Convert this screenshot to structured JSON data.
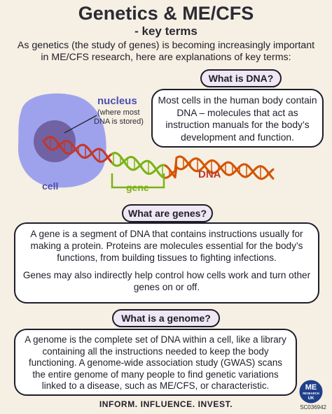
{
  "header": {
    "title": "Genetics & ME/CFS",
    "subtitle": "- key terms",
    "intro": "As genetics (the study of genes) is becoming increasingly important in ME/CFS research, here are explanations of key terms:"
  },
  "dna_section": {
    "question": "What is DNA?",
    "answer": "Most cells in the human body contain DNA – molecules that act as instruction manuals for the body’s development and function."
  },
  "diagram": {
    "nucleus_label": "nucleus",
    "nucleus_note_line1": "(where most",
    "nucleus_note_line2": "DNA is stored)",
    "cell_label": "cell",
    "gene_label": "gene",
    "dna_label": "DNA",
    "colors": {
      "cell": "#8e94ef",
      "nucleus": "#6b5b9a",
      "dna_red": "#c0392b",
      "dna_orange": "#d35400",
      "gene_green": "#7ab317",
      "label_blue": "#4a4fb0"
    }
  },
  "genes_section": {
    "question": "What are genes?",
    "answer_p1": "A gene is a segment of DNA that contains instructions usually for making a protein. Proteins are molecules essential for the body’s functions, from building tissues to fighting infections.",
    "answer_p2": "Genes may also indirectly help control how cells work and turn other genes on or off."
  },
  "genome_section": {
    "question": "What is a genome?",
    "answer": "A genome is the complete set of DNA within a cell, like a library containing all the instructions needed to keep the body functioning. A genome-wide association study (GWAS) scans the entire genome of many people to find genetic variations linked to a disease, such as ME/CFS, or characteristic."
  },
  "footer": {
    "tagline": "INFORM. INFLUENCE. INVEST.",
    "logo_main": "ME",
    "logo_line1": "RESEARCH",
    "logo_line2": "UK",
    "charity_number": "SC036942"
  }
}
